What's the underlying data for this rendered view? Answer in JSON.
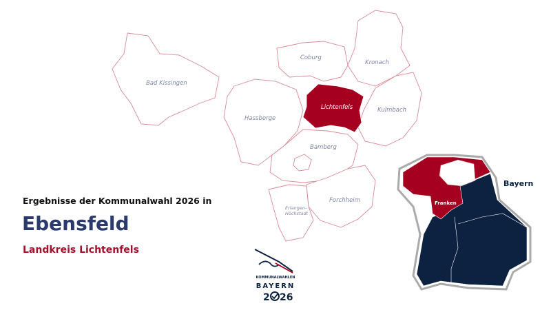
{
  "header": {
    "intro": "Ergebnisse der Kommunalwahl 2026 in",
    "place": "Ebensfeld",
    "district": "Landkreis Lichtenfels"
  },
  "map": {
    "districts": [
      {
        "name": "Bad Kissingen",
        "highlighted": false
      },
      {
        "name": "Coburg",
        "highlighted": false
      },
      {
        "name": "Kronach",
        "highlighted": false
      },
      {
        "name": "Lichtenfels",
        "highlighted": true
      },
      {
        "name": "Kulmbach",
        "highlighted": false
      },
      {
        "name": "Hassberge",
        "highlighted": false
      },
      {
        "name": "Bamberg",
        "highlighted": false
      },
      {
        "name": "Forchheim",
        "highlighted": false
      },
      {
        "name": "Erlangen-",
        "highlighted": false
      },
      {
        "name": "Höchstadt",
        "highlighted": false
      }
    ],
    "highlight_color": "#a5001f",
    "outline_color": "#d98a96",
    "label_color": "#7f86a8"
  },
  "inset": {
    "state_label": "Bayern",
    "region_label": "Franken",
    "franken_color": "#a5001f",
    "other_color": "#0d2240"
  },
  "logo": {
    "line1": "KOMMUNALWAHLEN",
    "line2": "BAYERN",
    "year_a": "2",
    "year_b": "26"
  }
}
